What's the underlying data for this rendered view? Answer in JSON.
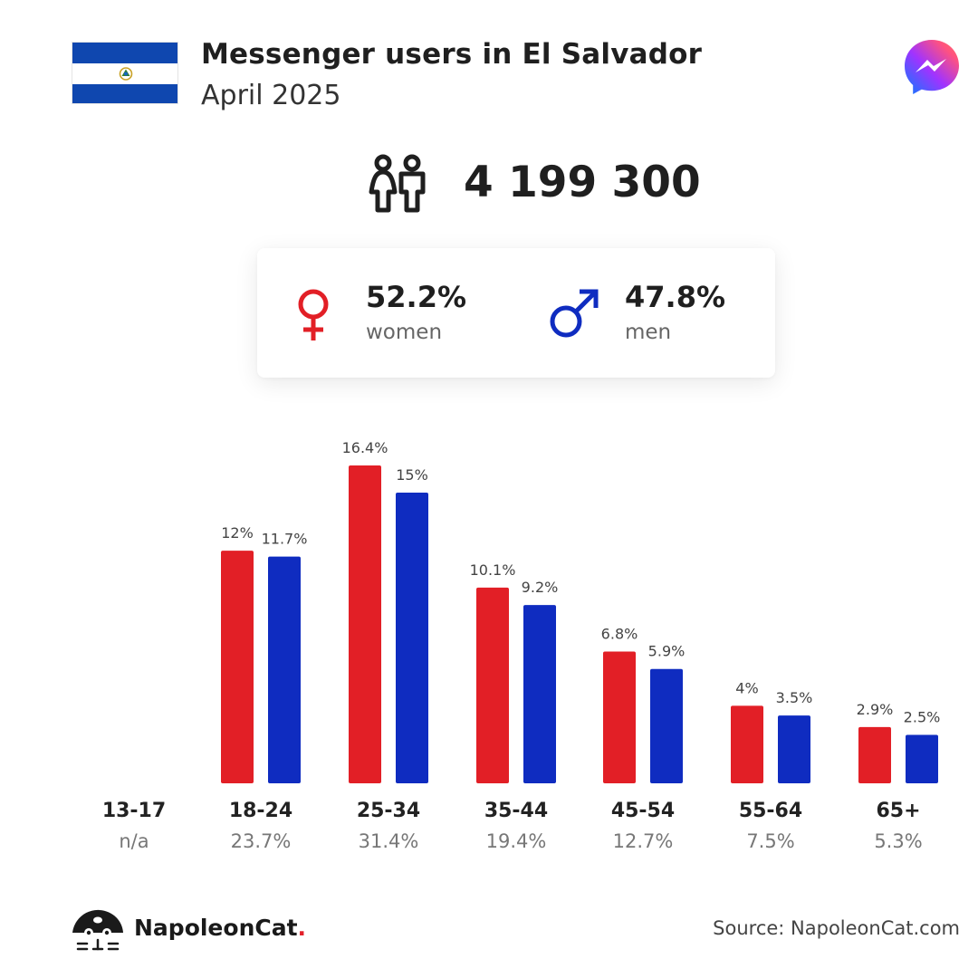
{
  "header": {
    "title": "Messenger users in El Salvador",
    "subtitle": "April 2025",
    "flag_icon": "el-salvador-flag",
    "app_icon": "messenger-icon"
  },
  "total": {
    "value": "4 199 300",
    "icon": "people-icon"
  },
  "gender": {
    "women": {
      "percent": "52.2%",
      "label": "women",
      "icon": "female-symbol-icon",
      "color": "#e21f26"
    },
    "men": {
      "percent": "47.8%",
      "label": "men",
      "icon": "male-symbol-icon",
      "color": "#0f2cc0"
    }
  },
  "colors": {
    "women": "#e21f26",
    "men": "#0f2cc0",
    "flag_blue": "#0f47af"
  },
  "chart_data": {
    "type": "bar",
    "categories": [
      "13-17",
      "18-24",
      "25-34",
      "35-44",
      "45-54",
      "55-64",
      "65+"
    ],
    "category_totals": [
      "n/a",
      "23.7%",
      "31.4%",
      "19.4%",
      "12.7%",
      "7.5%",
      "5.3%"
    ],
    "series": [
      {
        "name": "women",
        "values": [
          null,
          12,
          16.4,
          10.1,
          6.8,
          4,
          2.9
        ],
        "labels": [
          "",
          "12%",
          "16.4%",
          "10.1%",
          "6.8%",
          "4%",
          "2.9%"
        ],
        "color": "#e21f26"
      },
      {
        "name": "men",
        "values": [
          null,
          11.7,
          15,
          9.2,
          5.9,
          3.5,
          2.5
        ],
        "labels": [
          "",
          "11.7%",
          "15%",
          "9.2%",
          "5.9%",
          "3.5%",
          "2.5%"
        ],
        "color": "#0f2cc0"
      }
    ],
    "unit": "%",
    "ylim": [
      0,
      16.4
    ],
    "grid": false,
    "legend": "none"
  },
  "footer": {
    "brand_name": "NapoleonCat",
    "brand_dot": ".",
    "source": "Source: NapoleonCat.com"
  }
}
